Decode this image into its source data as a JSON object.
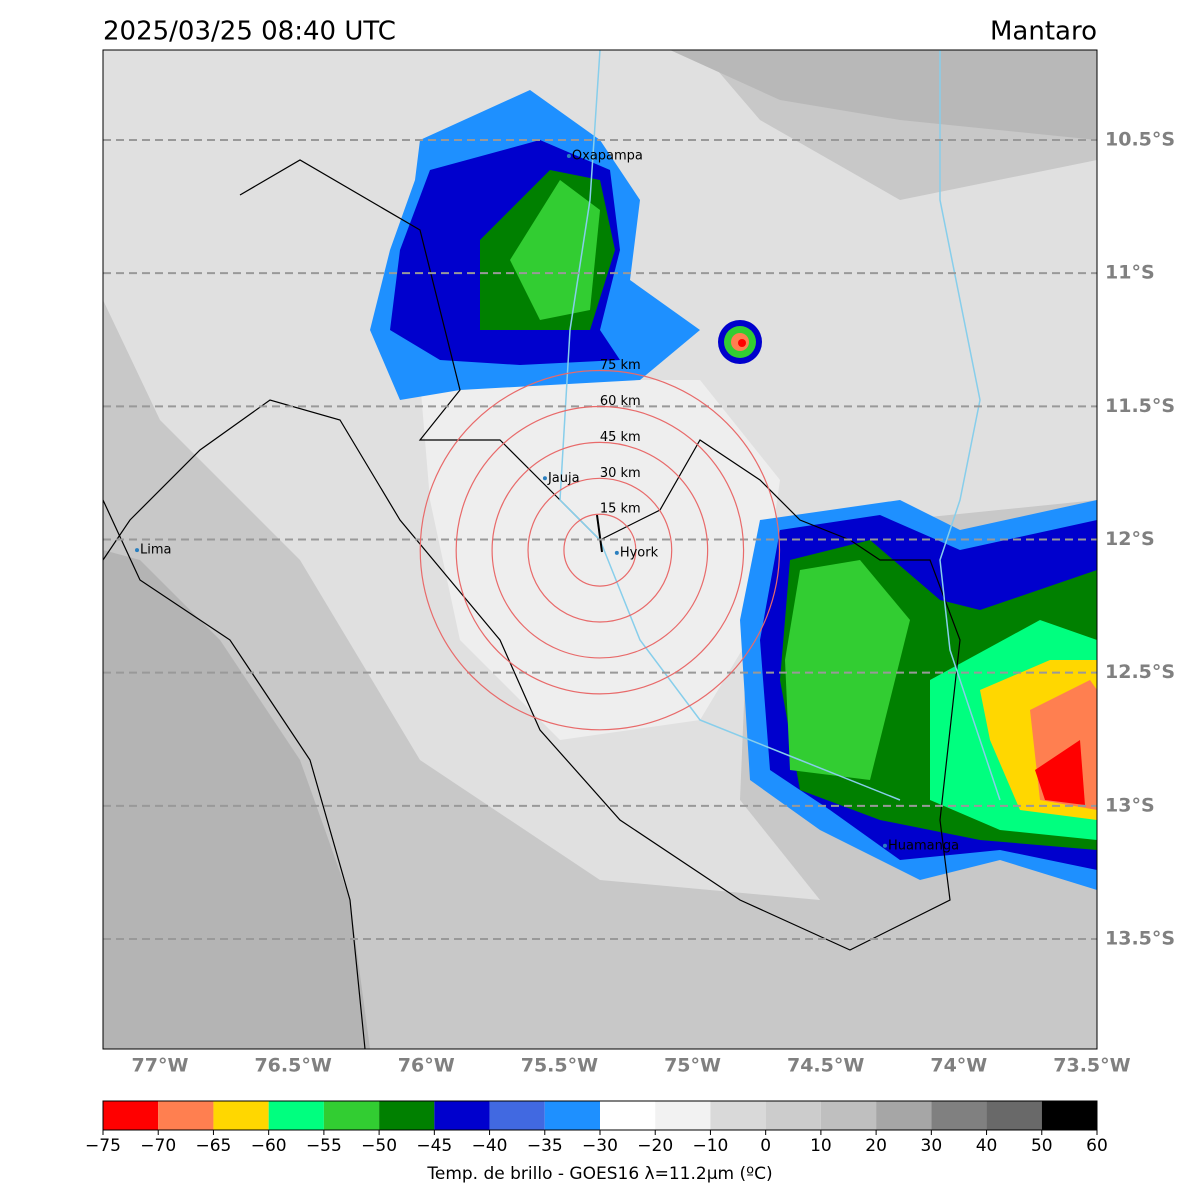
{
  "title": "2025/03/25 08:40 UTC",
  "location": "Mantaro",
  "map": {
    "xlim": [
      -77.214,
      -73.481
    ],
    "ylim": [
      -13.913,
      -10.162
    ],
    "lat_lines": [
      {
        "value": -10.5,
        "label": "10.5°S"
      },
      {
        "value": -11,
        "label": "11°S"
      },
      {
        "value": -11.5,
        "label": "11.5°S"
      },
      {
        "value": -12,
        "label": "12°S"
      },
      {
        "value": -12.5,
        "label": "12.5°S"
      },
      {
        "value": -13,
        "label": "13°S"
      },
      {
        "value": -13.5,
        "label": "13.5°S"
      }
    ],
    "lon_ticks": [
      {
        "value": -77,
        "label": "77°W"
      },
      {
        "value": -76.5,
        "label": "76.5°W"
      },
      {
        "value": -76,
        "label": "76°W"
      },
      {
        "value": -75.5,
        "label": "75.5°W"
      },
      {
        "value": -75,
        "label": "75°W"
      },
      {
        "value": -74.5,
        "label": "74.5°W"
      },
      {
        "value": -74,
        "label": "74°W"
      },
      {
        "value": -73.5,
        "label": "73.5°W"
      }
    ],
    "places": [
      {
        "name": "Oxapampa",
        "lon": -75.453,
        "lat": -10.56
      },
      {
        "name": "Lima",
        "lon": -77.075,
        "lat": -12.04
      },
      {
        "name": "Jauja",
        "lon": -75.543,
        "lat": -11.77
      },
      {
        "name": "Hyork",
        "lon": -75.273,
        "lat": -12.05
      },
      {
        "name": "Huamanga",
        "lon": -74.266,
        "lat": -13.15
      }
    ],
    "rings": {
      "center_lon": -75.348,
      "center_lat": -12.04,
      "radii_km": [
        15,
        30,
        45,
        60,
        75
      ],
      "labels": [
        "15 km",
        "30 km",
        "45 km",
        "60 km",
        "75 km"
      ],
      "color": "#e86a6a"
    }
  },
  "colorbar": {
    "label": "Temp. de brillo - GOES16 λ=11.2μm (ºC)",
    "bins": [
      {
        "value": -75,
        "label": "−75"
      },
      {
        "value": -70,
        "label": "−70"
      },
      {
        "value": -65,
        "label": "−65"
      },
      {
        "value": -60,
        "label": "−60"
      },
      {
        "value": -55,
        "label": "−55"
      },
      {
        "value": -50,
        "label": "−50"
      },
      {
        "value": -45,
        "label": "−45"
      },
      {
        "value": -40,
        "label": "−40"
      },
      {
        "value": -35,
        "label": "−35"
      },
      {
        "value": -30,
        "label": "−30"
      },
      {
        "value": -20,
        "label": "−20"
      },
      {
        "value": -10,
        "label": "−10"
      },
      0,
      10,
      20,
      30,
      40,
      50,
      60
    ],
    "colors": [
      "#ff0000",
      "#ff7f50",
      "#ffd700",
      "#00ff7f",
      "#32cd32",
      "#008000",
      "#0000cd",
      "#4169e1",
      "#1e90ff",
      "#ffffff",
      "#f2f2f2",
      "#d9d9d9",
      "#cccccc",
      "#bfbfbf",
      "#a6a6a6",
      "#808080",
      "#696969",
      "#000000"
    ]
  }
}
